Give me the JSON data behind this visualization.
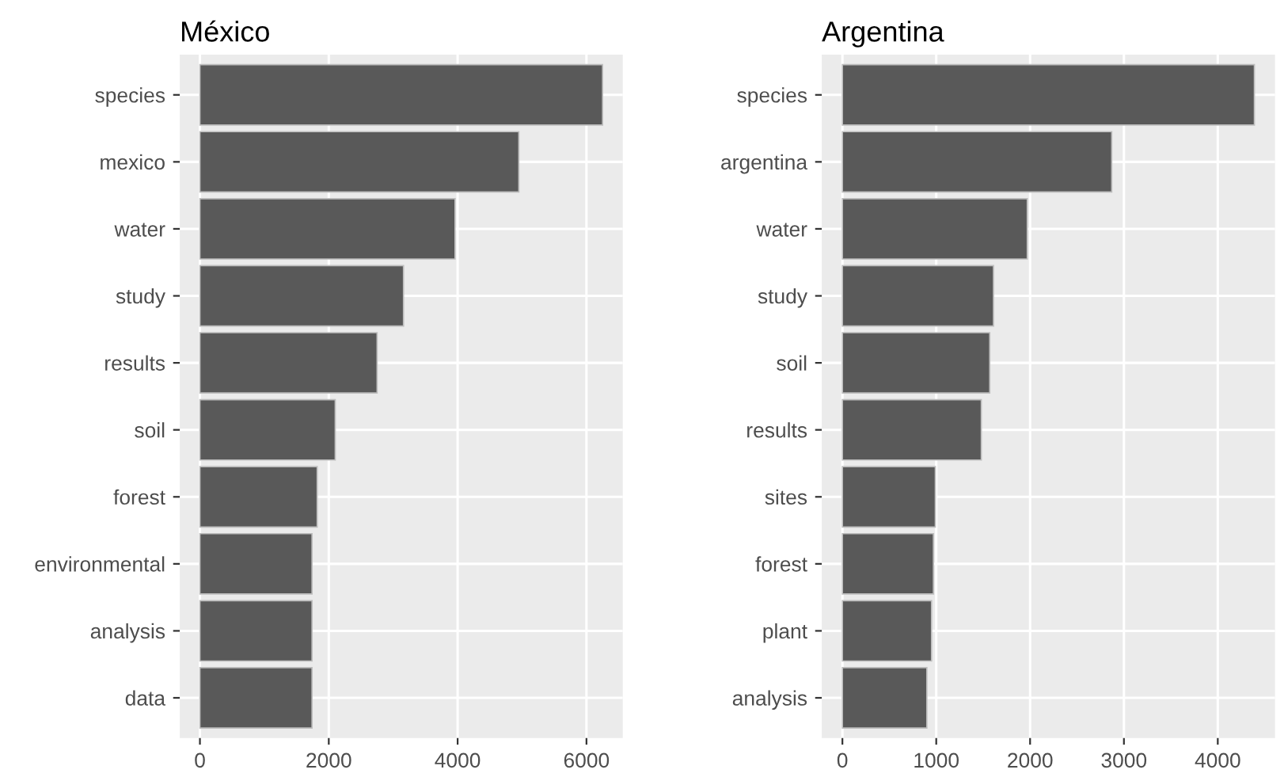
{
  "chart_data": [
    {
      "type": "bar",
      "orientation": "horizontal",
      "title": "México",
      "categories": [
        "species",
        "mexico",
        "water",
        "study",
        "results",
        "soil",
        "forest",
        "environmental",
        "analysis",
        "data"
      ],
      "values": [
        6250,
        4950,
        3960,
        3160,
        2750,
        2100,
        1820,
        1740,
        1740,
        1740
      ],
      "color": "#595959",
      "xlim": [
        -313,
        6563
      ],
      "xticks": [
        0,
        2000,
        4000,
        6000
      ],
      "grid": true,
      "legend": false
    },
    {
      "type": "bar",
      "orientation": "horizontal",
      "title": "Argentina",
      "categories": [
        "species",
        "argentina",
        "water",
        "study",
        "soil",
        "results",
        "sites",
        "forest",
        "plant",
        "analysis"
      ],
      "values": [
        4390,
        2870,
        1970,
        1610,
        1570,
        1480,
        990,
        970,
        950,
        900
      ],
      "color": "#595959",
      "xlim": [
        -220,
        4610
      ],
      "xticks": [
        0,
        1000,
        2000,
        3000,
        4000
      ],
      "grid": true,
      "legend": false
    }
  ]
}
